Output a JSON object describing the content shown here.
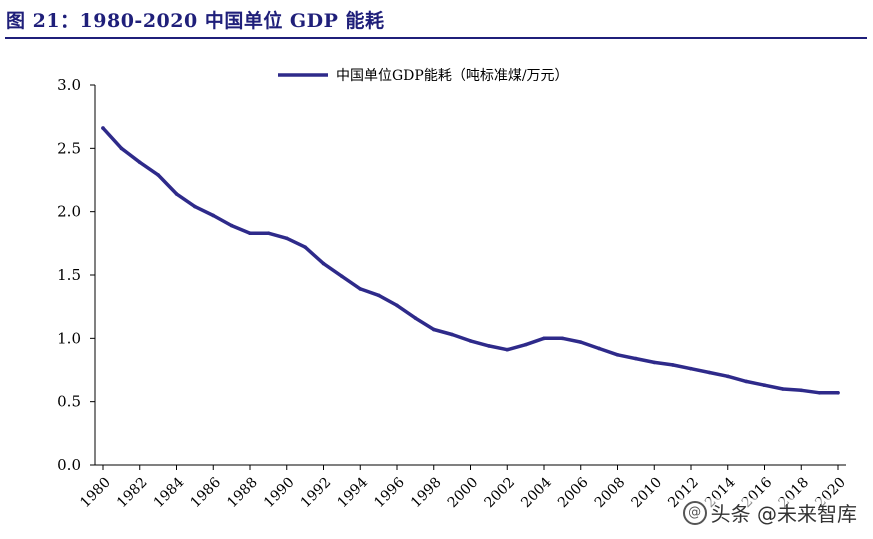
{
  "figure": {
    "title": "图 21：1980-2020 中国单位 GDP 能耗"
  },
  "watermark": {
    "text": "头条 @未来智库",
    "icon": "at-sign-icon"
  },
  "colors": {
    "series": "#2e2a8a",
    "title": "#1f1f7a",
    "axis": "#000000"
  },
  "chart_data": {
    "type": "line",
    "title": "1980-2020 中国单位 GDP 能耗",
    "xlabel": "",
    "ylabel": "",
    "xlim": [
      1980,
      2020
    ],
    "ylim": [
      0,
      3.0
    ],
    "yticks": [
      "0.0",
      "0.5",
      "1.0",
      "1.5",
      "2.0",
      "2.5",
      "3.0"
    ],
    "xticks": [
      "1980",
      "1982",
      "1984",
      "1986",
      "1988",
      "1990",
      "1992",
      "1994",
      "1996",
      "1998",
      "2000",
      "2002",
      "2004",
      "2006",
      "2008",
      "2010",
      "2012",
      "2014",
      "2016",
      "2018",
      "2020"
    ],
    "legend_position": "top-center",
    "series": [
      {
        "name": "中国单位GDP能耗（吨标准煤/万元）",
        "x": [
          1980,
          1981,
          1982,
          1983,
          1984,
          1985,
          1986,
          1987,
          1988,
          1989,
          1990,
          1991,
          1992,
          1993,
          1994,
          1995,
          1996,
          1997,
          1998,
          1999,
          2000,
          2001,
          2002,
          2003,
          2004,
          2005,
          2006,
          2007,
          2008,
          2009,
          2010,
          2011,
          2012,
          2013,
          2014,
          2015,
          2016,
          2017,
          2018,
          2019,
          2020
        ],
        "values": [
          2.66,
          2.5,
          2.39,
          2.29,
          2.14,
          2.04,
          1.97,
          1.89,
          1.83,
          1.83,
          1.79,
          1.72,
          1.59,
          1.49,
          1.39,
          1.34,
          1.26,
          1.16,
          1.07,
          1.03,
          0.98,
          0.94,
          0.91,
          0.95,
          1.0,
          1.0,
          0.97,
          0.92,
          0.87,
          0.84,
          0.81,
          0.79,
          0.76,
          0.73,
          0.7,
          0.66,
          0.63,
          0.6,
          0.59,
          0.57,
          0.57
        ]
      }
    ]
  }
}
